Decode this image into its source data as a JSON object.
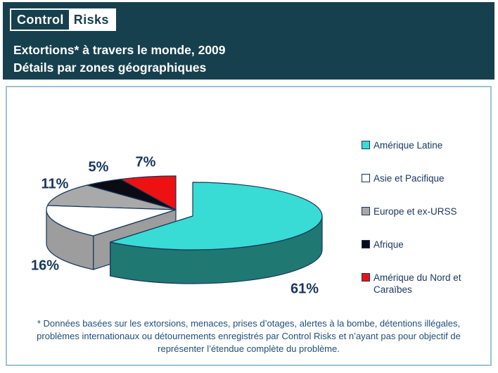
{
  "header": {
    "logo": {
      "part1": "Control",
      "part2": "Risks"
    },
    "title_line1": "Extortions* à travers le monde, 2009",
    "title_line2": "Détails par zones géographiques"
  },
  "chart_data": {
    "type": "pie",
    "three_d": true,
    "title": "Extortions* à travers le monde, 2009 — Détails par zones géographiques",
    "unit": "percent",
    "series": [
      {
        "label": "Amérique Latine",
        "value": 61,
        "display": "61%",
        "color": "#38DCD4",
        "side_color": "#207872"
      },
      {
        "label": "Asie et Pacifique",
        "value": 16,
        "display": "16%",
        "color": "#FFFFFF",
        "side_color": "#9D9D9D"
      },
      {
        "label": "Europe et ex-URSS",
        "value": 11,
        "display": "11%",
        "color": "#A9A9A9",
        "side_color": "#8C8C8C"
      },
      {
        "label": "Afrique",
        "value": 5,
        "display": "5%",
        "color": "#0B0B14",
        "side_color": "#000000"
      },
      {
        "label": "Amérique du Nord et Caraïbes",
        "value": 7,
        "display": "7%",
        "color": "#EE1111",
        "side_color": "#7A0C0C"
      }
    ],
    "exploded_slice": "Amérique Latine",
    "legend_position": "right",
    "start_angle": "12-oclock-clockwise",
    "outline_color": "#17375D",
    "label_color": "#17375D"
  },
  "footnote": "* Données basées sur les extorsions, menaces, prises d’otages, alertes à la bombe, détentions illégales, problèmes internationaux ou détournements enregistrés par Control Risks et n’ayant pas pour objectif de représenter l’étendue complète du problème.",
  "colors": {
    "header_bg": "#17404E",
    "panel_border": "#9CC3D5",
    "text_navy": "#17375D",
    "footnote_blue": "#1F4E79"
  }
}
